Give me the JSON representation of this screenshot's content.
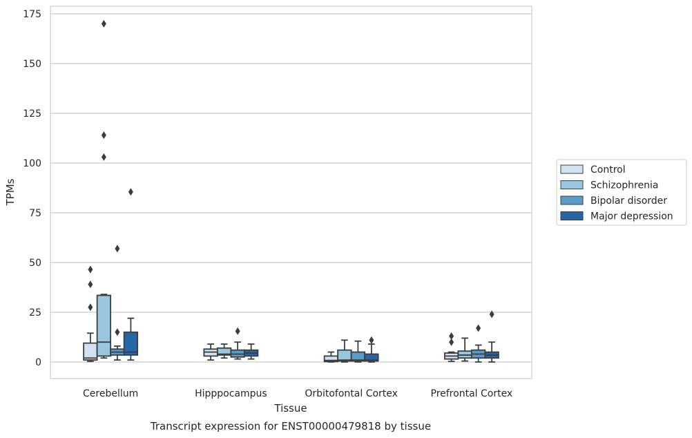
{
  "caption": "Transcript expression for ENST00000479818 by tissue",
  "chart_data": {
    "type": "box",
    "xlabel": "Tissue",
    "ylabel": "TPMs",
    "ylim": [
      -8,
      179
    ],
    "yticks": [
      0,
      25,
      50,
      75,
      100,
      125,
      150,
      175
    ],
    "grid": "horizontal",
    "legend_position": "right",
    "categories": [
      "Cerebellum",
      "Hipppocampus",
      "Orbitofontal Cortex",
      "Prefrontal Cortex"
    ],
    "series": [
      {
        "name": "Control",
        "color": "#d1e1f0",
        "boxes": [
          {
            "whislo": 0.3,
            "q1": 1.0,
            "med": 2.0,
            "q3": 9.5,
            "whishi": 14.5,
            "fliers": [
              27.5,
              39,
              46.5
            ]
          },
          {
            "whislo": 1.0,
            "q1": 3.0,
            "med": 5.0,
            "q3": 6.5,
            "whishi": 9.0,
            "fliers": []
          },
          {
            "whislo": 0.0,
            "q1": 0.2,
            "med": 0.8,
            "q3": 3.0,
            "whishi": 5.0,
            "fliers": []
          },
          {
            "whislo": 0.3,
            "q1": 1.5,
            "med": 3.0,
            "q3": 4.5,
            "whishi": 5.0,
            "fliers": [
              10,
              13
            ]
          }
        ]
      },
      {
        "name": "Schizophrenia",
        "color": "#9ac7e0",
        "boxes": [
          {
            "whislo": 2.0,
            "q1": 3.0,
            "med": 10.0,
            "q3": 33.5,
            "whishi": 34.0,
            "fliers": [
              103,
              114,
              170
            ]
          },
          {
            "whislo": 2.0,
            "q1": 3.5,
            "med": 4.0,
            "q3": 7.0,
            "whishi": 9.0,
            "fliers": []
          },
          {
            "whislo": 0.0,
            "q1": 0.5,
            "med": 1.0,
            "q3": 6.0,
            "whishi": 11.0,
            "fliers": []
          },
          {
            "whislo": 0.5,
            "q1": 2.0,
            "med": 3.5,
            "q3": 5.5,
            "whishi": 12.0,
            "fliers": []
          }
        ]
      },
      {
        "name": "Bipolar disorder",
        "color": "#5a9bc9",
        "boxes": [
          {
            "whislo": 1.0,
            "q1": 3.5,
            "med": 5.0,
            "q3": 6.5,
            "whishi": 8.0,
            "fliers": [
              15,
              57
            ]
          },
          {
            "whislo": 1.5,
            "q1": 2.5,
            "med": 4.0,
            "q3": 6.0,
            "whishi": 10.0,
            "fliers": [
              15.5
            ]
          },
          {
            "whislo": 0.0,
            "q1": 0.5,
            "med": 1.0,
            "q3": 5.0,
            "whishi": 10.5,
            "fliers": []
          },
          {
            "whislo": 0.0,
            "q1": 2.0,
            "med": 4.0,
            "q3": 6.0,
            "whishi": 8.5,
            "fliers": [
              17
            ]
          }
        ]
      },
      {
        "name": "Major depression",
        "color": "#2466a8",
        "boxes": [
          {
            "whislo": 1.0,
            "q1": 3.5,
            "med": 5.0,
            "q3": 15.0,
            "whishi": 22.0,
            "fliers": [
              85.5
            ]
          },
          {
            "whislo": 1.5,
            "q1": 3.0,
            "med": 4.5,
            "q3": 6.0,
            "whishi": 9.0,
            "fliers": []
          },
          {
            "whislo": 0.0,
            "q1": 0.5,
            "med": 1.0,
            "q3": 4.0,
            "whishi": 9.0,
            "fliers": [
              11
            ]
          },
          {
            "whislo": 0.0,
            "q1": 2.0,
            "med": 3.5,
            "q3": 5.0,
            "whishi": 10.0,
            "fliers": [
              24
            ]
          }
        ]
      }
    ]
  }
}
